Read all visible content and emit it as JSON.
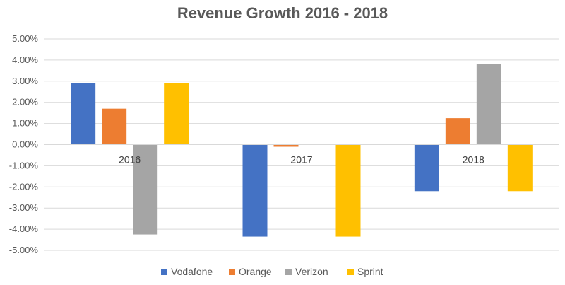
{
  "chart_data": {
    "type": "bar",
    "title": "Revenue Growth 2016 - 2018",
    "xlabel": "",
    "ylabel": "",
    "categories": [
      "2016",
      "2017",
      "2018"
    ],
    "ylim": [
      -5,
      5
    ],
    "yticks": [
      "5.00%",
      "4.00%",
      "3.00%",
      "2.00%",
      "1.00%",
      "0.00%",
      "-1.00%",
      "-2.00%",
      "-3.00%",
      "-4.00%",
      "-5.00%"
    ],
    "grid": true,
    "legend": "bottom",
    "series": [
      {
        "name": "Vodafone",
        "color": "#4472C4",
        "values": [
          2.9,
          -4.35,
          -2.2
        ]
      },
      {
        "name": "Orange",
        "color": "#ED7D31",
        "values": [
          1.7,
          -0.1,
          1.25
        ]
      },
      {
        "name": "Verizon",
        "color": "#A5A5A5",
        "values": [
          -4.25,
          0.05,
          3.82
        ]
      },
      {
        "name": "Sprint",
        "color": "#FFC000",
        "values": [
          2.9,
          -4.35,
          -2.2
        ]
      }
    ]
  }
}
